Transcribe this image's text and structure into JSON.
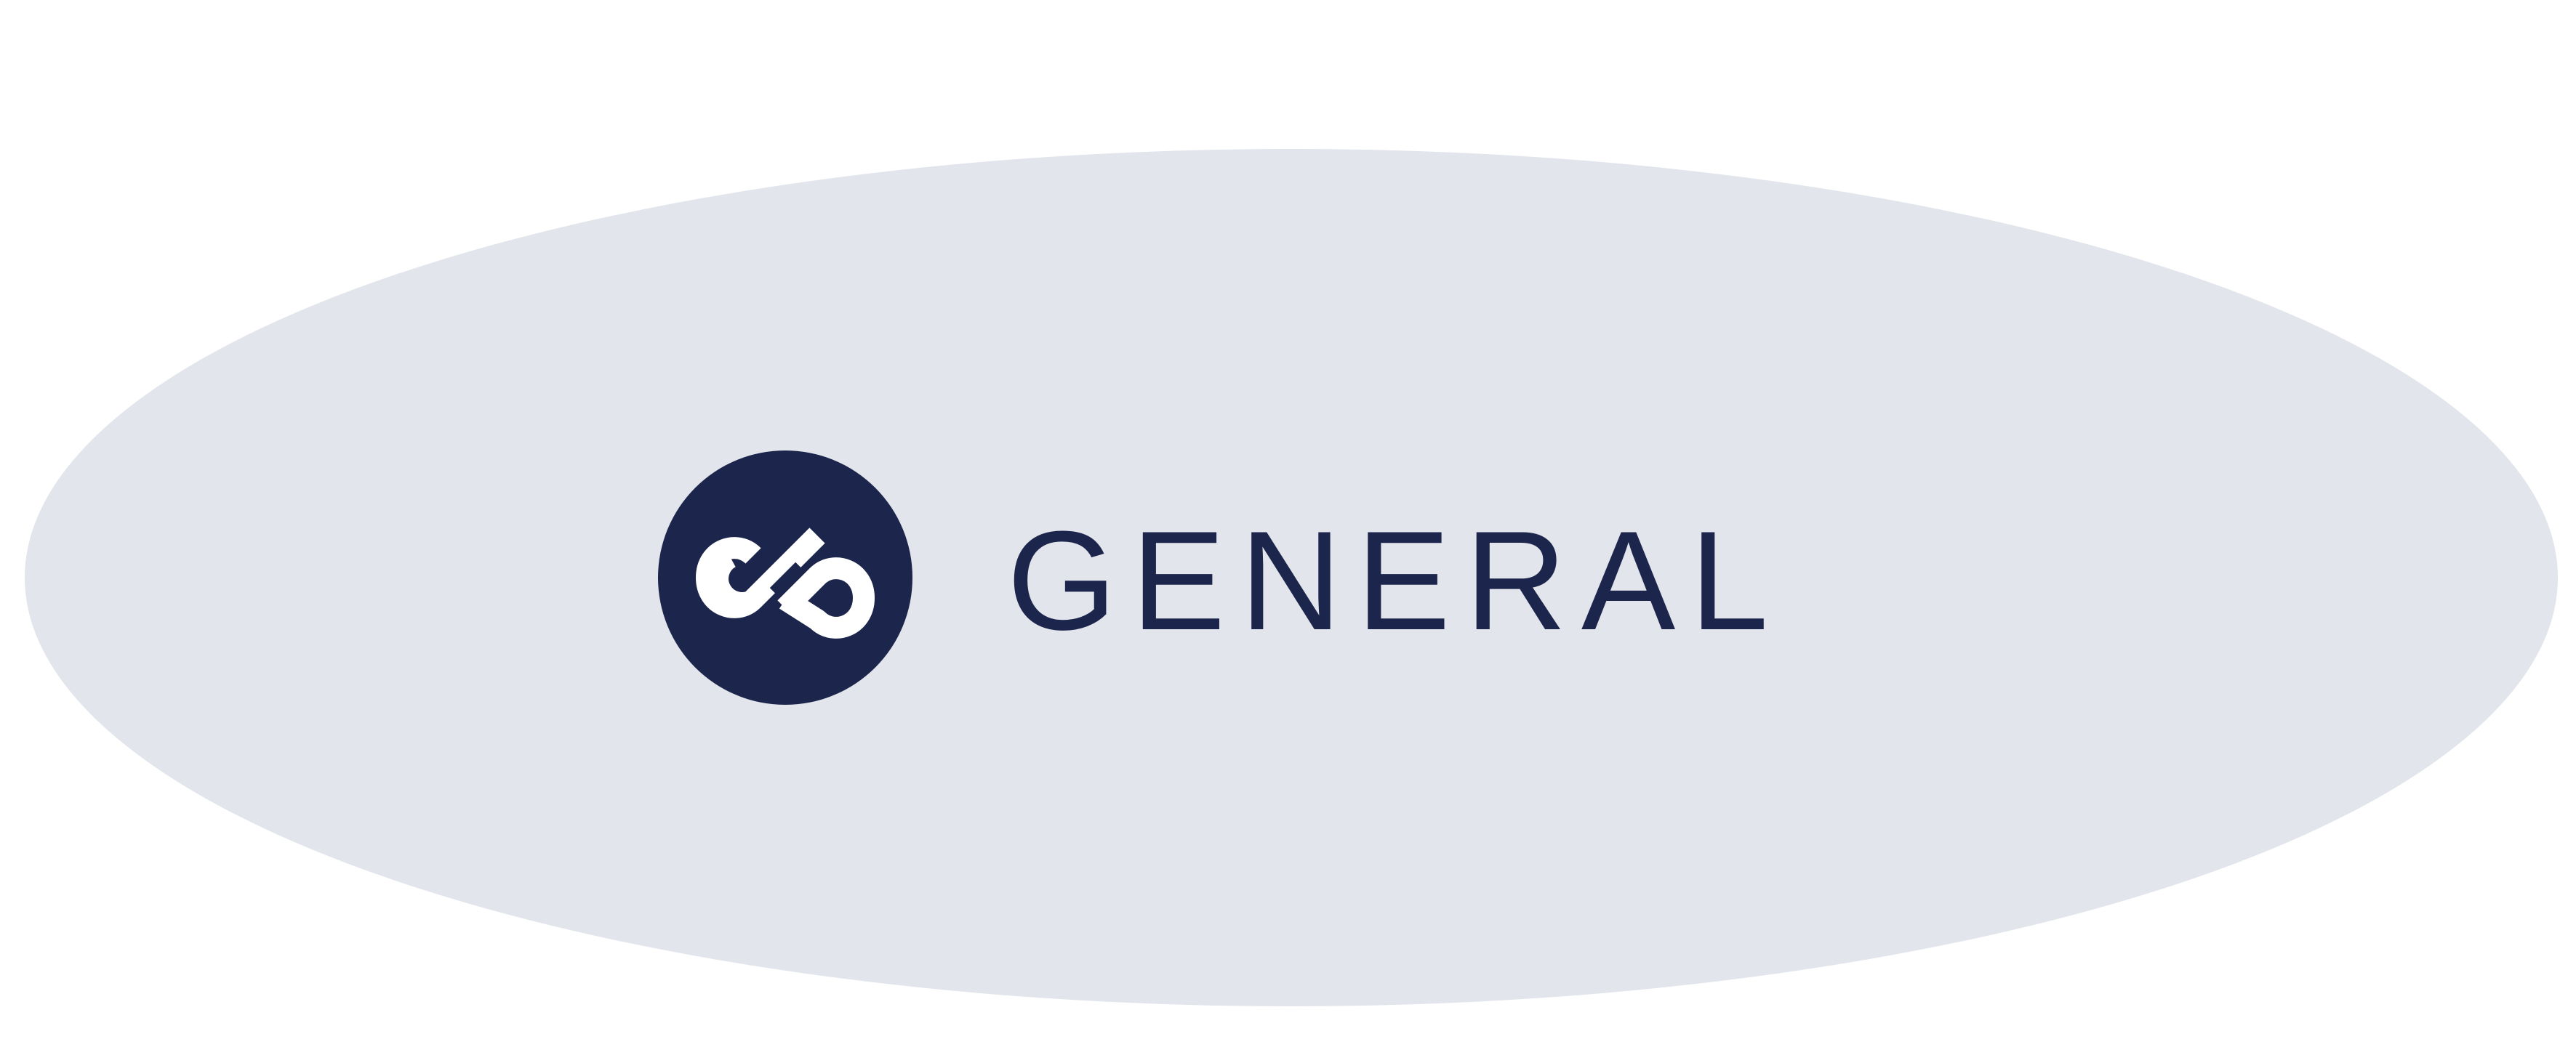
{
  "brand": {
    "name": "GENERAL",
    "icon": "infinity-icon",
    "colors": {
      "navy": "#1c254b",
      "ellipse": "#e2e5ec",
      "background": "#ffffff",
      "symbol": "#ffffff"
    }
  }
}
